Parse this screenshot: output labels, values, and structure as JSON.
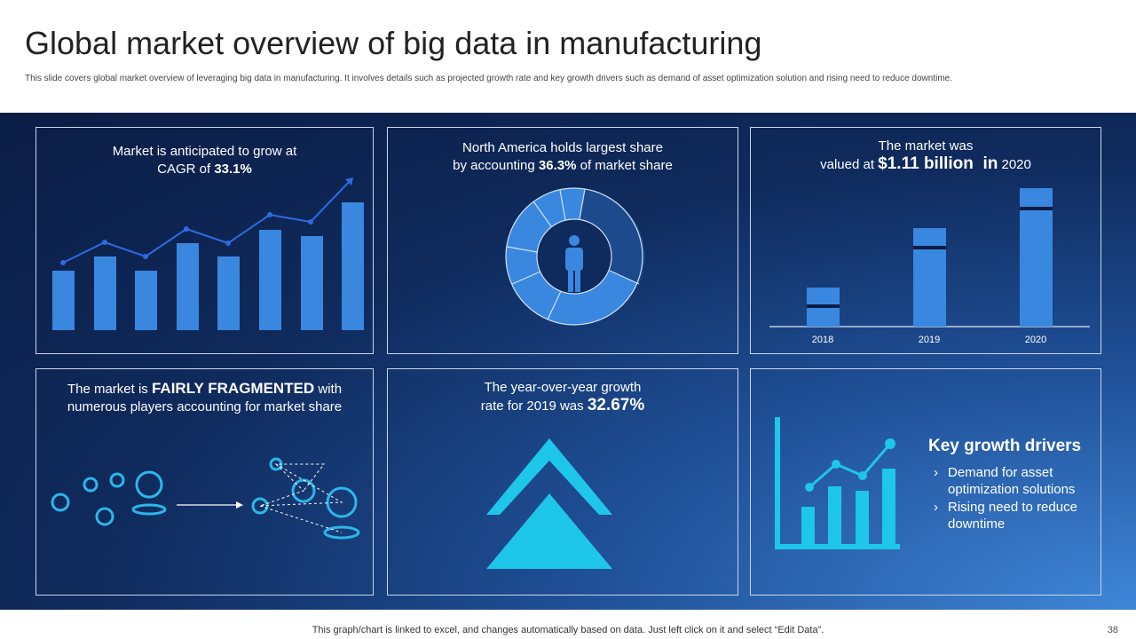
{
  "header": {
    "title": "Global market overview of big data in manufacturing",
    "description": "This slide covers global market overview of leveraging big data in manufacturing. It involves details such as projected growth rate and key growth drivers such as demand of asset optimization solution and rising need to reduce downtime."
  },
  "panels": [
    {
      "lines": [
        "Market is anticipated to grow at",
        "CAGR of ",
        "33.1%"
      ]
    },
    {
      "lines": [
        "North America holds largest share",
        "by accounting ",
        "36.3%",
        " of market share"
      ]
    },
    {
      "lines": [
        "The market was",
        "valued at ",
        "$1.11 billion  in",
        " 2020"
      ],
      "years": [
        "2018",
        "2019",
        "2020"
      ]
    },
    {
      "lines": [
        "The market is ",
        "FAIRLY FRAGMENTED",
        " with",
        "numerous players accounting for market share"
      ]
    },
    {
      "lines": [
        "The year-over-year growth",
        "rate for 2019 was ",
        "32.67%"
      ]
    },
    {
      "title": "Key growth drivers",
      "items": [
        "Demand for asset optimization solutions",
        "Rising need to reduce downtime"
      ]
    }
  ],
  "footer": {
    "note": "This graph/chart is linked to excel,  and changes automatically based on data. Just left click on it and select “Edit Data”.",
    "page": "38"
  }
}
